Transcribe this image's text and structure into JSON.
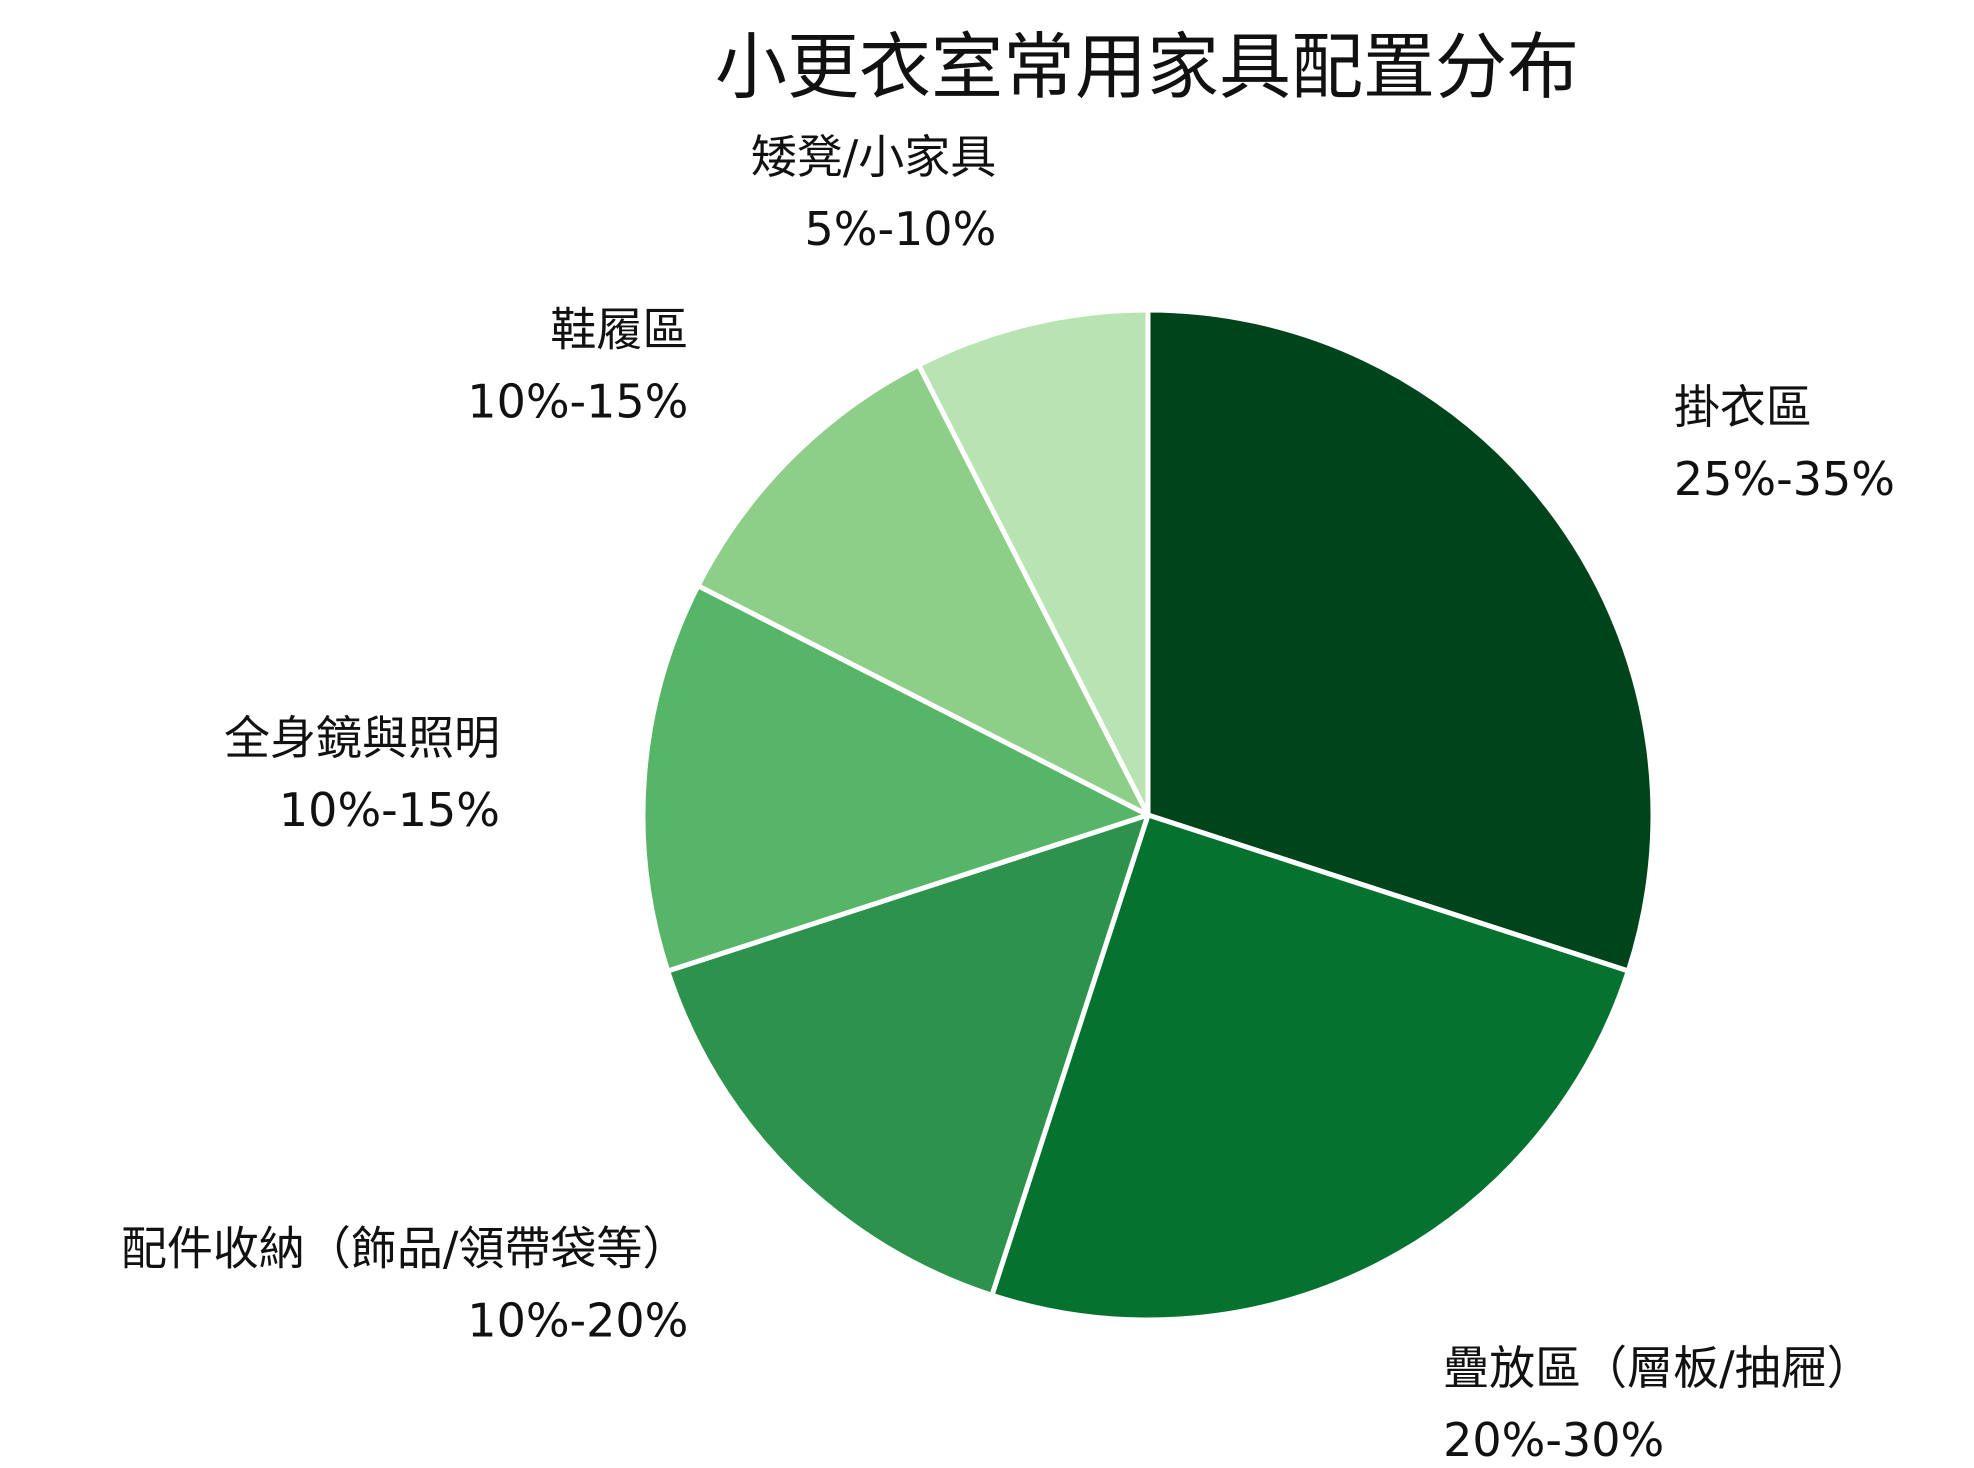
{
  "chart_data": {
    "type": "pie",
    "title": "小更衣室常用家具配置分布",
    "start_angle": "12 o'clock",
    "direction": "clockwise",
    "legend": "none",
    "slices": [
      {
        "name": "掛衣區",
        "range_label": "25%-35%",
        "value": 30,
        "color": "#00441b"
      },
      {
        "name": "疊放區（層板/抽屜）",
        "range_label": "20%-30%",
        "value": 25,
        "color": "#067230"
      },
      {
        "name": "配件收納（飾品/領帶袋等）",
        "range_label": "10%-20%",
        "value": 15,
        "color": "#2d924b"
      },
      {
        "name": "全身鏡與照明",
        "range_label": "10%-15%",
        "value": 12.5,
        "color": "#57b567"
      },
      {
        "name": "鞋履區",
        "range_label": "10%-15%",
        "value": 10,
        "color": "#8dce89"
      },
      {
        "name": "矮凳/小家具",
        "range_label": "5%-10%",
        "value": 7.5,
        "color": "#b8e3b2"
      }
    ]
  }
}
